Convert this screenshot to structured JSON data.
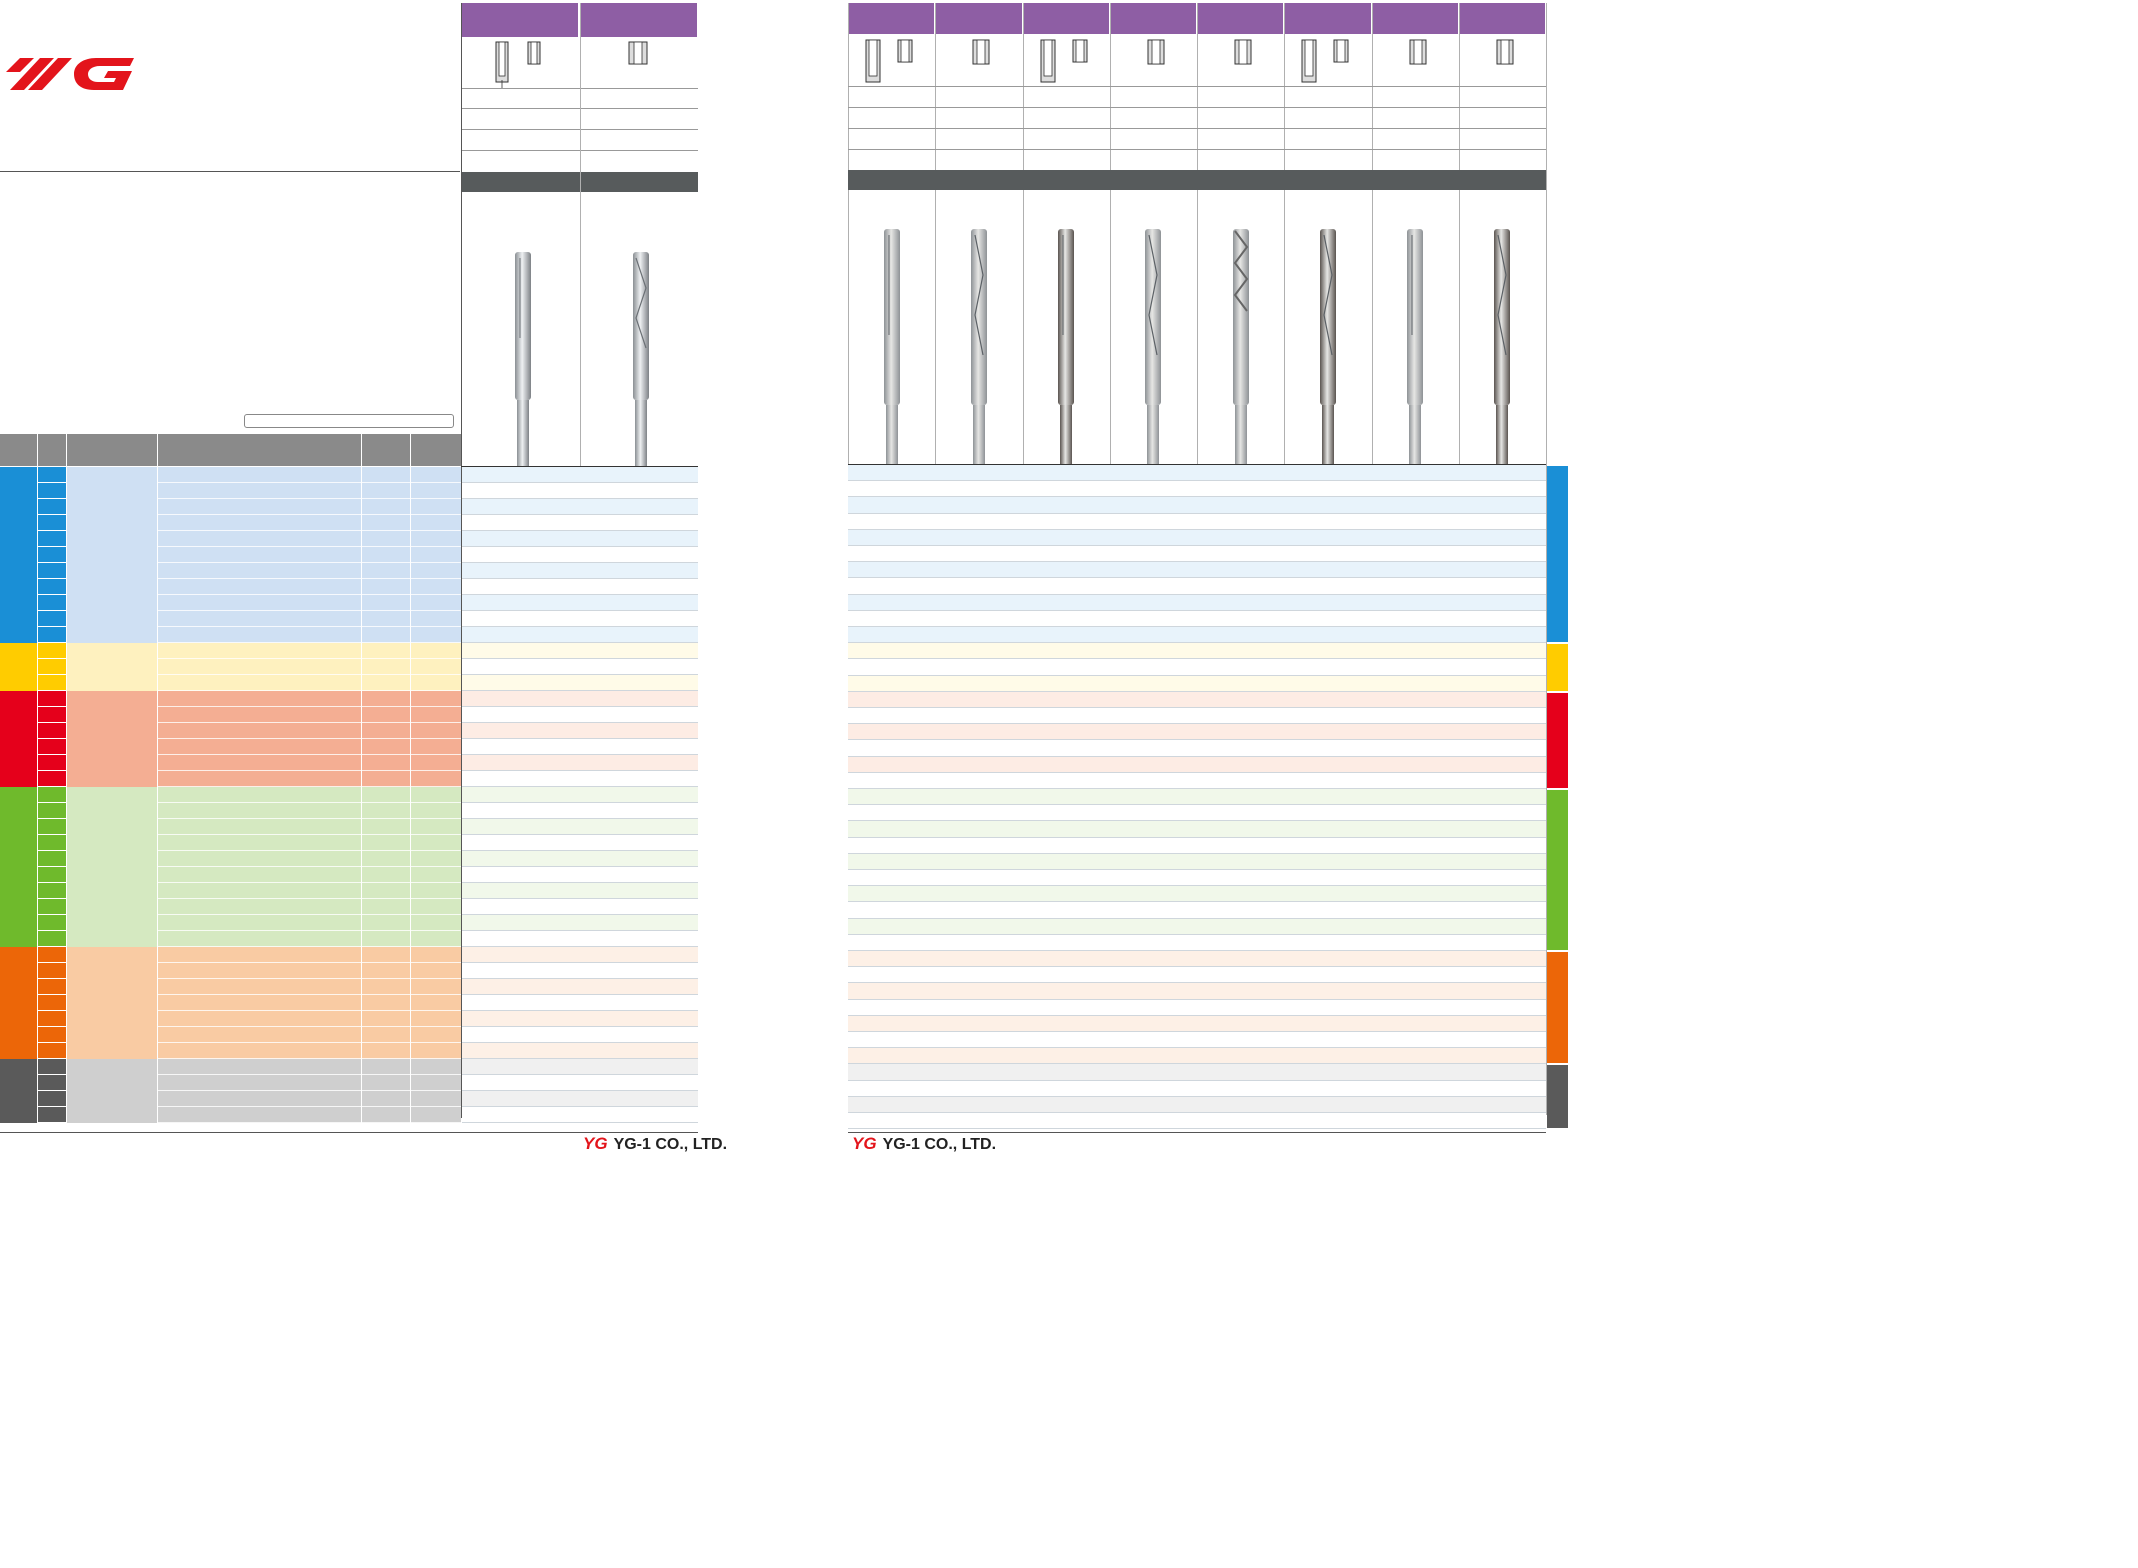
{
  "brand": {
    "logo_text": "YG",
    "company_left": "YG-1 CO., LTD.",
    "company_right": "YG-1 CO., LTD."
  },
  "colors": {
    "purple": "#8e5ea4",
    "dark_bar": "#575b5c",
    "logo_red": "#e3141b",
    "groups": [
      {
        "id": "P",
        "main": "#1a8fd6",
        "light": "#cfe0f3",
        "row_tint": "#e8f3fb"
      },
      {
        "id": "M",
        "main": "#ffcc00",
        "light": "#fef1bf",
        "row_tint": "#fffbe8"
      },
      {
        "id": "K",
        "main": "#e5001b",
        "light": "#f4ae93",
        "row_tint": "#fdece4"
      },
      {
        "id": "N",
        "main": "#6fba2c",
        "light": "#d5e9c1",
        "row_tint": "#f1f8ea"
      },
      {
        "id": "S",
        "main": "#ec6608",
        "light": "#f9cba3",
        "row_tint": "#fdf0e6"
      },
      {
        "id": "H",
        "main": "#5a5a5a",
        "light": "#cfcfcf",
        "row_tint": "#f0f0f0"
      }
    ]
  },
  "left_panel": {
    "product_columns": 2,
    "reamer_icons": [
      "reamer-straight-icon",
      "reamer-spiral-icon"
    ],
    "hole_icons": [
      "blind-and-through-hole-icon",
      "through-hole-icon"
    ]
  },
  "right_panel": {
    "product_columns": 8,
    "reamer_icons": [
      "reamer-straight-icon",
      "reamer-spiral-icon",
      "reamer-straight-icon",
      "reamer-spiral-icon",
      "drill-reamer-icon",
      "reamer-straight-icon",
      "reamer-spiral-icon",
      "reamer-spiral-icon"
    ],
    "hole_icons": [
      "blind-and-through-hole-icon",
      "through-hole-icon",
      "blind-and-through-hole-icon",
      "through-hole-icon",
      "through-hole-icon",
      "blind-and-through-hole-icon",
      "through-hole-icon",
      "through-hole-icon"
    ]
  }
}
